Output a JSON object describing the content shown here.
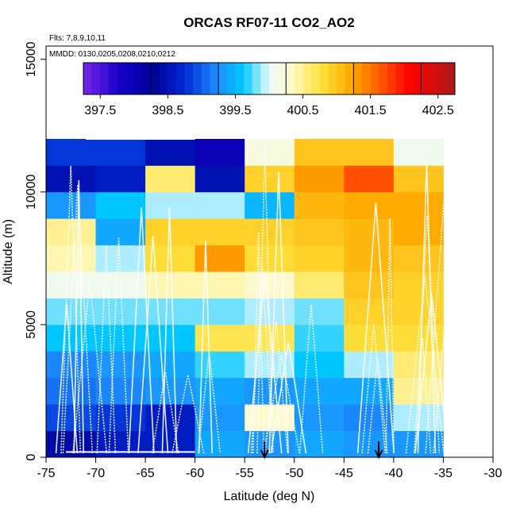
{
  "chart_data": {
    "type": "heatmap",
    "title": "ORCAS RF07-11 CO2_AO2",
    "flights_note": "Flts: 7,8,9,10,11",
    "dates_note": "MMDD: 0130,0205,0208,0210,0212",
    "xlabel": "Latitude (deg N)",
    "ylabel": "Altitude (m)",
    "xlim": [
      -75,
      -30
    ],
    "ylim": [
      0,
      15500
    ],
    "xticks": [
      -75,
      -70,
      -65,
      -60,
      -55,
      -50,
      -45,
      -40,
      -35,
      -30
    ],
    "yticks": [
      0,
      5000,
      10000,
      15000
    ],
    "colorbar": {
      "min": 397.25,
      "max": 402.75,
      "step": 0.5,
      "tick_values": [
        397.5,
        398.5,
        399.5,
        400.5,
        401.5,
        402.5
      ],
      "tick_labels": [
        "397.5",
        "398.5",
        "399.5",
        "400.5",
        "401.5",
        "402.5"
      ]
    },
    "lat_bins": [
      -75,
      -70,
      -65,
      -60,
      -55,
      -50,
      -45,
      -40,
      -35
    ],
    "alt_bins": [
      0,
      1000,
      2000,
      3000,
      4000,
      5000,
      6000,
      7000,
      8000,
      9000,
      10000,
      11000,
      12000
    ],
    "values": [
      [
        398.4,
        398.6,
        398.6,
        399.4,
        399.3,
        399.4,
        399.3,
        399.3
      ],
      [
        398.9,
        398.8,
        398.6,
        399.3,
        400.3,
        399.3,
        399.2,
        399.9
      ],
      [
        399.1,
        399.2,
        399.3,
        399.4,
        399.3,
        399.4,
        399.4,
        400.5
      ],
      [
        399.2,
        399.3,
        399.4,
        399.7,
        399.9,
        399.6,
        399.9,
        400.6
      ],
      [
        399.6,
        399.6,
        399.6,
        400.7,
        400.7,
        399.7,
        400.8,
        400.8
      ],
      [
        399.8,
        399.8,
        399.8,
        399.8,
        399.9,
        399.8,
        400.9,
        400.9
      ],
      [
        400.1,
        400.1,
        400.4,
        400.4,
        400.3,
        400.6,
        401.0,
        400.9
      ],
      [
        400.4,
        399.9,
        400.8,
        401.3,
        400.8,
        400.9,
        401.1,
        401.0
      ],
      [
        400.5,
        399.4,
        400.9,
        400.9,
        400.9,
        401.0,
        401.1,
        401.2
      ],
      [
        399.3,
        399.6,
        399.9,
        399.9,
        399.5,
        401.1,
        401.2,
        401.2
      ],
      [
        398.5,
        398.6,
        400.6,
        398.5,
        400.9,
        401.3,
        401.7,
        401.0
      ],
      [
        398.8,
        398.8,
        398.5,
        398.0,
        400.2,
        401.0,
        401.0,
        400.1
      ]
    ],
    "markers": [
      -53,
      -41.5
    ]
  }
}
